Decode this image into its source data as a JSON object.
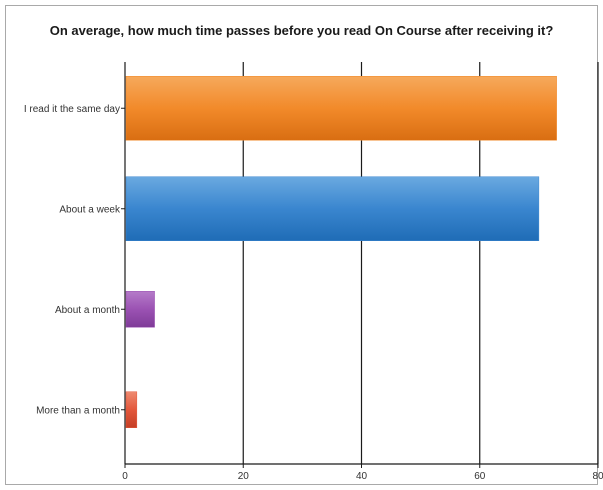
{
  "chart_data": {
    "type": "bar",
    "orientation": "horizontal",
    "title": "On average, how much time passes before you read On Course after receiving it?",
    "categories": [
      "I read it the same day",
      "About a week",
      "About a month",
      "More than a month"
    ],
    "values": [
      73,
      70,
      5,
      2
    ],
    "colors": [
      "#f2892a",
      "#3a86cf",
      "#9b52b3",
      "#e3573b"
    ],
    "xlim": [
      0,
      80
    ],
    "xticks": [
      "0",
      "20",
      "40",
      "60",
      "80"
    ],
    "grid": true,
    "xlabel": "",
    "ylabel": ""
  }
}
